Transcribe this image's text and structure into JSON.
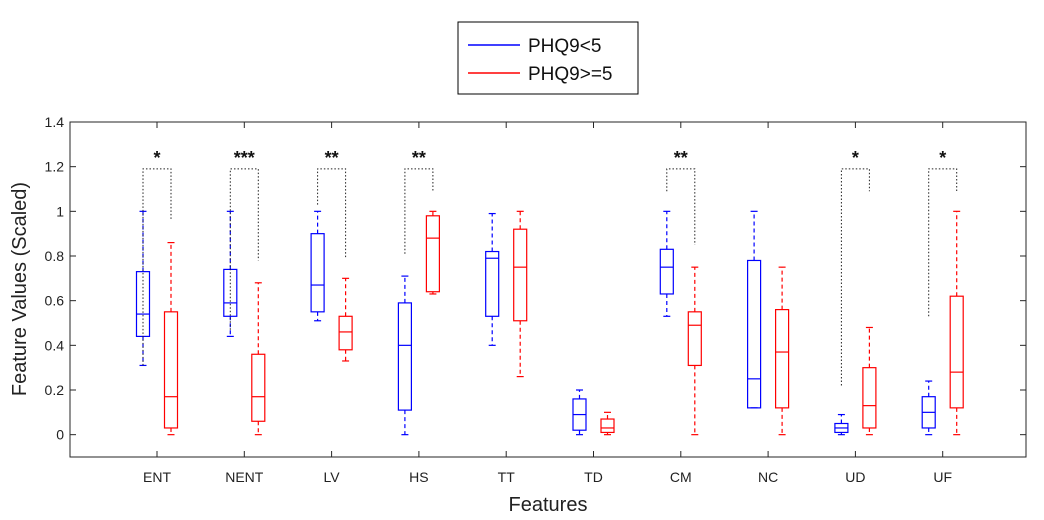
{
  "chart_data": {
    "type": "box",
    "xlabel": "Features",
    "ylabel": "Feature Values (Scaled)",
    "ylim": [
      -0.1,
      1.4
    ],
    "yticks": [
      0,
      0.2,
      0.4,
      0.6,
      0.8,
      1,
      1.2,
      1.4
    ],
    "ytick_labels": [
      "0",
      "0.2",
      "0.4",
      "0.6",
      "0.8",
      "1",
      "1.2",
      "1.4"
    ],
    "grid": false,
    "legend_position": "top-center",
    "categories": [
      "ENT",
      "NENT",
      "LV",
      "HS",
      "TT",
      "TD",
      "CM",
      "NC",
      "UD",
      "UF"
    ],
    "series": [
      {
        "name": "PHQ9<5",
        "color": "#0000ff",
        "boxes": [
          {
            "min": 0.31,
            "q1": 0.44,
            "median": 0.54,
            "q3": 0.73,
            "max": 1.0
          },
          {
            "min": 0.44,
            "q1": 0.53,
            "median": 0.59,
            "q3": 0.74,
            "max": 1.0
          },
          {
            "min": 0.51,
            "q1": 0.55,
            "median": 0.67,
            "q3": 0.9,
            "max": 1.0
          },
          {
            "min": 0.0,
            "q1": 0.11,
            "median": 0.4,
            "q3": 0.59,
            "max": 0.71
          },
          {
            "min": 0.4,
            "q1": 0.53,
            "median": 0.79,
            "q3": 0.82,
            "max": 0.99
          },
          {
            "min": 0.0,
            "q1": 0.02,
            "median": 0.09,
            "q3": 0.16,
            "max": 0.2
          },
          {
            "min": 0.53,
            "q1": 0.63,
            "median": 0.75,
            "q3": 0.83,
            "max": 1.0
          },
          {
            "min": 0.12,
            "q1": 0.12,
            "median": 0.25,
            "q3": 0.78,
            "max": 1.0
          },
          {
            "min": 0.0,
            "q1": 0.01,
            "median": 0.03,
            "q3": 0.05,
            "max": 0.09
          },
          {
            "min": 0.0,
            "q1": 0.03,
            "median": 0.1,
            "q3": 0.17,
            "max": 0.24
          }
        ]
      },
      {
        "name": "PHQ9>=5",
        "color": "#ff0000",
        "boxes": [
          {
            "min": 0.0,
            "q1": 0.03,
            "median": 0.17,
            "q3": 0.55,
            "max": 0.86
          },
          {
            "min": 0.0,
            "q1": 0.06,
            "median": 0.17,
            "q3": 0.36,
            "max": 0.68
          },
          {
            "min": 0.33,
            "q1": 0.38,
            "median": 0.46,
            "q3": 0.53,
            "max": 0.7
          },
          {
            "min": 0.63,
            "q1": 0.64,
            "median": 0.88,
            "q3": 0.98,
            "max": 1.0
          },
          {
            "min": 0.26,
            "q1": 0.51,
            "median": 0.75,
            "q3": 0.92,
            "max": 1.0
          },
          {
            "min": 0.0,
            "q1": 0.01,
            "median": 0.03,
            "q3": 0.07,
            "max": 0.1
          },
          {
            "min": 0.0,
            "q1": 0.31,
            "median": 0.49,
            "q3": 0.55,
            "max": 0.75
          },
          {
            "min": 0.0,
            "q1": 0.12,
            "median": 0.37,
            "q3": 0.56,
            "max": 0.75
          },
          {
            "min": 0.0,
            "q1": 0.03,
            "median": 0.13,
            "q3": 0.3,
            "max": 0.48
          },
          {
            "min": 0.0,
            "q1": 0.12,
            "median": 0.28,
            "q3": 0.62,
            "max": 1.0
          }
        ]
      }
    ],
    "significance": [
      {
        "category": "ENT",
        "label": "*",
        "left_y": 0.31,
        "right_y": 0.96,
        "top_y": 1.19
      },
      {
        "category": "NENT",
        "label": "***",
        "left_y": 0.47,
        "right_y": 0.78,
        "top_y": 1.19
      },
      {
        "category": "LV",
        "label": "**",
        "left_y": 1.03,
        "right_y": 0.79,
        "top_y": 1.19
      },
      {
        "category": "HS",
        "label": "**",
        "left_y": 0.81,
        "right_y": 1.09,
        "top_y": 1.19
      },
      {
        "category": "CM",
        "label": "**",
        "left_y": 1.09,
        "right_y": 0.85,
        "top_y": 1.19
      },
      {
        "category": "UD",
        "label": "*",
        "left_y": 0.22,
        "right_y": 1.09,
        "top_y": 1.19
      },
      {
        "category": "UF",
        "label": "*",
        "left_y": 0.53,
        "right_y": 1.09,
        "top_y": 1.19
      }
    ]
  }
}
